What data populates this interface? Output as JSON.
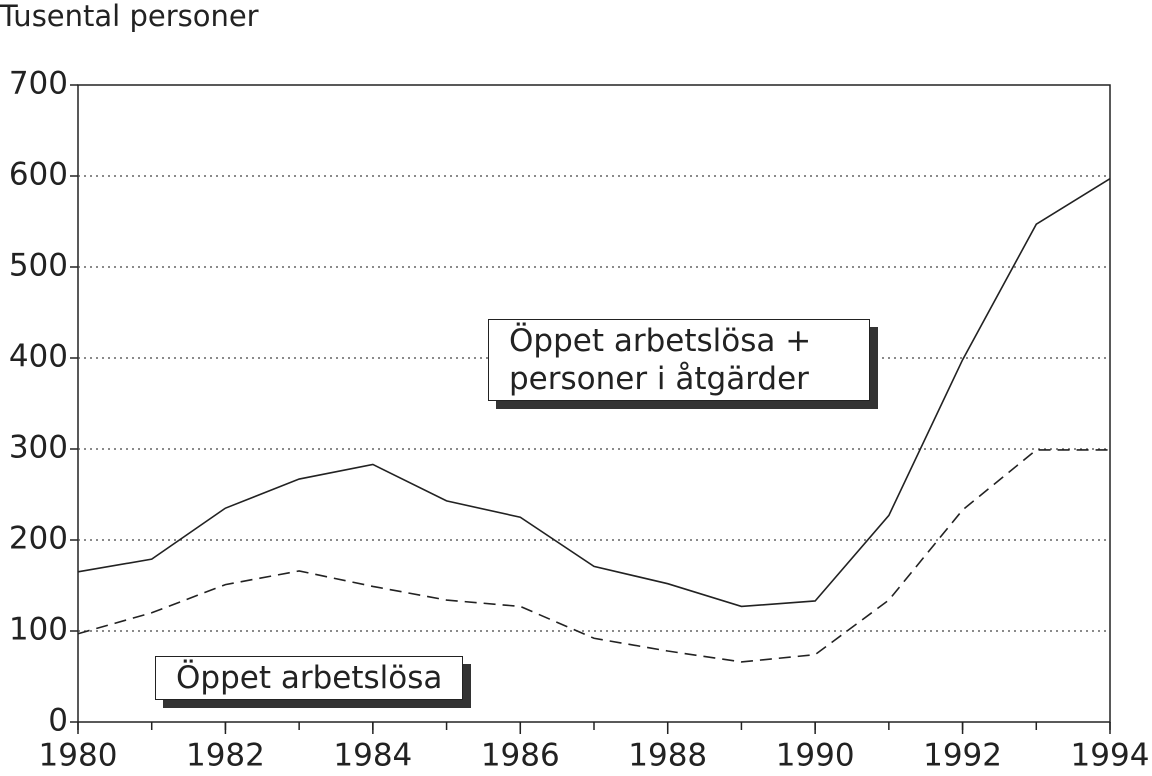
{
  "chart_data": {
    "type": "line",
    "y_label": "Tusental personer",
    "x": [
      1980,
      1981,
      1982,
      1983,
      1984,
      1985,
      1986,
      1987,
      1988,
      1989,
      1990,
      1991,
      1992,
      1993,
      1994
    ],
    "series": [
      {
        "name": "Öppet arbetslösa + personer i åtgärder",
        "color": "#222222",
        "line_style": "solid",
        "values": [
          165,
          179,
          235,
          267,
          283,
          243,
          225,
          171,
          152,
          127,
          133,
          227,
          398,
          547,
          597
        ]
      },
      {
        "name": "Öppet arbetslösa",
        "color": "#222222",
        "line_style": "dashed",
        "values": [
          97,
          120,
          151,
          166,
          149,
          134,
          127,
          92,
          78,
          66,
          74,
          134,
          233,
          299,
          299
        ]
      }
    ],
    "xlim": [
      1980,
      1994
    ],
    "xticks": [
      1980,
      1982,
      1984,
      1986,
      1988,
      1990,
      1992,
      1994
    ],
    "ylim": [
      0,
      700
    ],
    "yticks": [
      0,
      100,
      200,
      300,
      400,
      500,
      600,
      700
    ],
    "grid": true
  }
}
